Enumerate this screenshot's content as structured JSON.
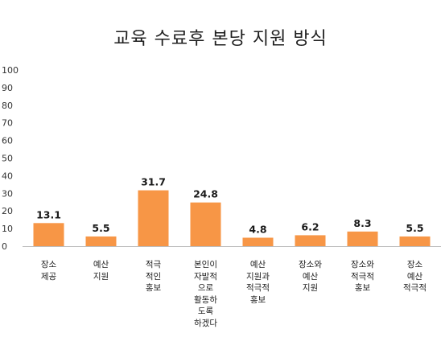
{
  "chart_data": {
    "type": "bar",
    "title": "교육 수료후 본당 지원 방식",
    "categories": [
      "장소\n제공",
      "예산\n지원",
      "적극\n적인\n홍보",
      "본인이\n자발적\n으로\n활동하\n도록\n하겠다",
      "예산\n지원과\n적극적\n홍보",
      "장소와\n예산\n지원",
      "장소와\n적극적\n홍보",
      "장소\n예산\n적극적"
    ],
    "values": [
      13.1,
      5.5,
      31.7,
      24.8,
      4.8,
      6.2,
      8.3,
      5.5
    ],
    "data_labels": [
      "13.1",
      "5.5",
      "31.7",
      "24.8",
      "4.8",
      "6.2",
      "8.3",
      "5.5"
    ],
    "ylim": [
      0,
      100
    ],
    "yticks": [
      0,
      10,
      20,
      30,
      40,
      50,
      60,
      70,
      80,
      90,
      100
    ],
    "xlabel": "",
    "ylabel": "",
    "grid": false,
    "legend": "none",
    "bar_color": "#F79646"
  }
}
